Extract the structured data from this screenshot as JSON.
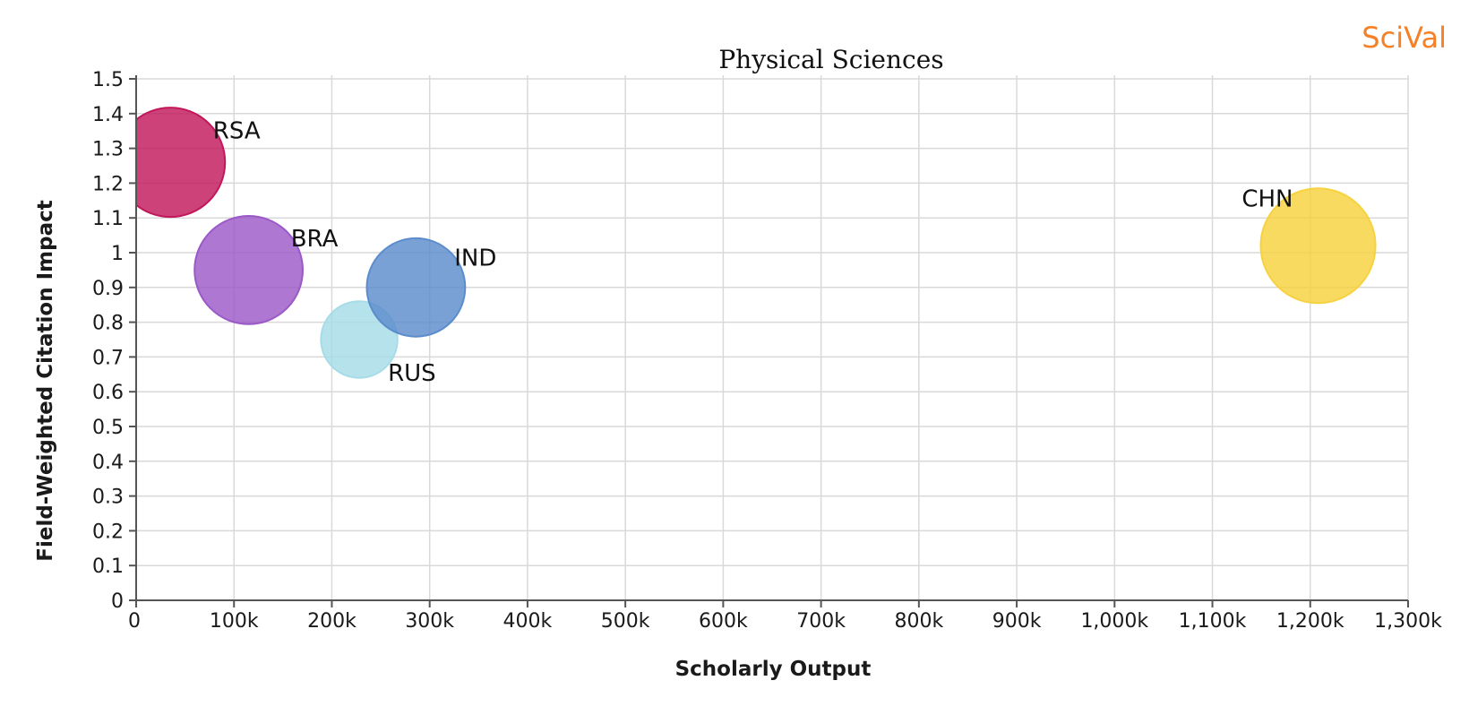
{
  "brand": {
    "name": "SciVal"
  },
  "chart_data": {
    "type": "scatter",
    "title": "Physical Sciences",
    "xlabel": "Scholarly Output",
    "ylabel": "Field-Weighted Citation Impact",
    "xlim": [
      0,
      1300000
    ],
    "ylim": [
      0,
      1.5
    ],
    "x_ticks": [
      {
        "value": 0,
        "label": "0"
      },
      {
        "value": 100000,
        "label": "100k"
      },
      {
        "value": 200000,
        "label": "200k"
      },
      {
        "value": 300000,
        "label": "300k"
      },
      {
        "value": 400000,
        "label": "400k"
      },
      {
        "value": 500000,
        "label": "500k"
      },
      {
        "value": 600000,
        "label": "600k"
      },
      {
        "value": 700000,
        "label": "700k"
      },
      {
        "value": 800000,
        "label": "800k"
      },
      {
        "value": 900000,
        "label": "900k"
      },
      {
        "value": 1000000,
        "label": "1,000k"
      },
      {
        "value": 1100000,
        "label": "1,100k"
      },
      {
        "value": 1200000,
        "label": "1,200k"
      },
      {
        "value": 1300000,
        "label": "1,300k"
      }
    ],
    "y_ticks": [
      {
        "value": 0,
        "label": "0"
      },
      {
        "value": 0.1,
        "label": "0.1"
      },
      {
        "value": 0.2,
        "label": "0.2"
      },
      {
        "value": 0.3,
        "label": "0.3"
      },
      {
        "value": 0.4,
        "label": "0.4"
      },
      {
        "value": 0.5,
        "label": "0.5"
      },
      {
        "value": 0.6,
        "label": "0.6"
      },
      {
        "value": 0.7,
        "label": "0.7"
      },
      {
        "value": 0.8,
        "label": "0.8"
      },
      {
        "value": 0.9,
        "label": "0.9"
      },
      {
        "value": 1.0,
        "label": "1"
      },
      {
        "value": 1.1,
        "label": "1.1"
      },
      {
        "value": 1.2,
        "label": "1.2"
      },
      {
        "value": 1.3,
        "label": "1.3"
      },
      {
        "value": 1.4,
        "label": "1.4"
      },
      {
        "value": 1.5,
        "label": "1.5"
      }
    ],
    "grid": true,
    "points": [
      {
        "name": "RSA",
        "x": 35000,
        "y": 1.26,
        "size": 1.0,
        "color": "#c2185b",
        "label_position": "upper-right"
      },
      {
        "name": "BRA",
        "x": 115000,
        "y": 0.95,
        "size": 0.99,
        "color": "#9b59c8",
        "label_position": "upper-right"
      },
      {
        "name": "RUS",
        "x": 228000,
        "y": 0.75,
        "size": 0.7,
        "color": "#a6dce8",
        "label_position": "lower-right"
      },
      {
        "name": "IND",
        "x": 286000,
        "y": 0.9,
        "size": 0.9,
        "color": "#5b8ccc",
        "label_position": "upper-right"
      },
      {
        "name": "CHN",
        "x": 1208000,
        "y": 1.02,
        "size": 1.05,
        "color": "#f7d23e",
        "label_position": "upper-left"
      }
    ]
  }
}
